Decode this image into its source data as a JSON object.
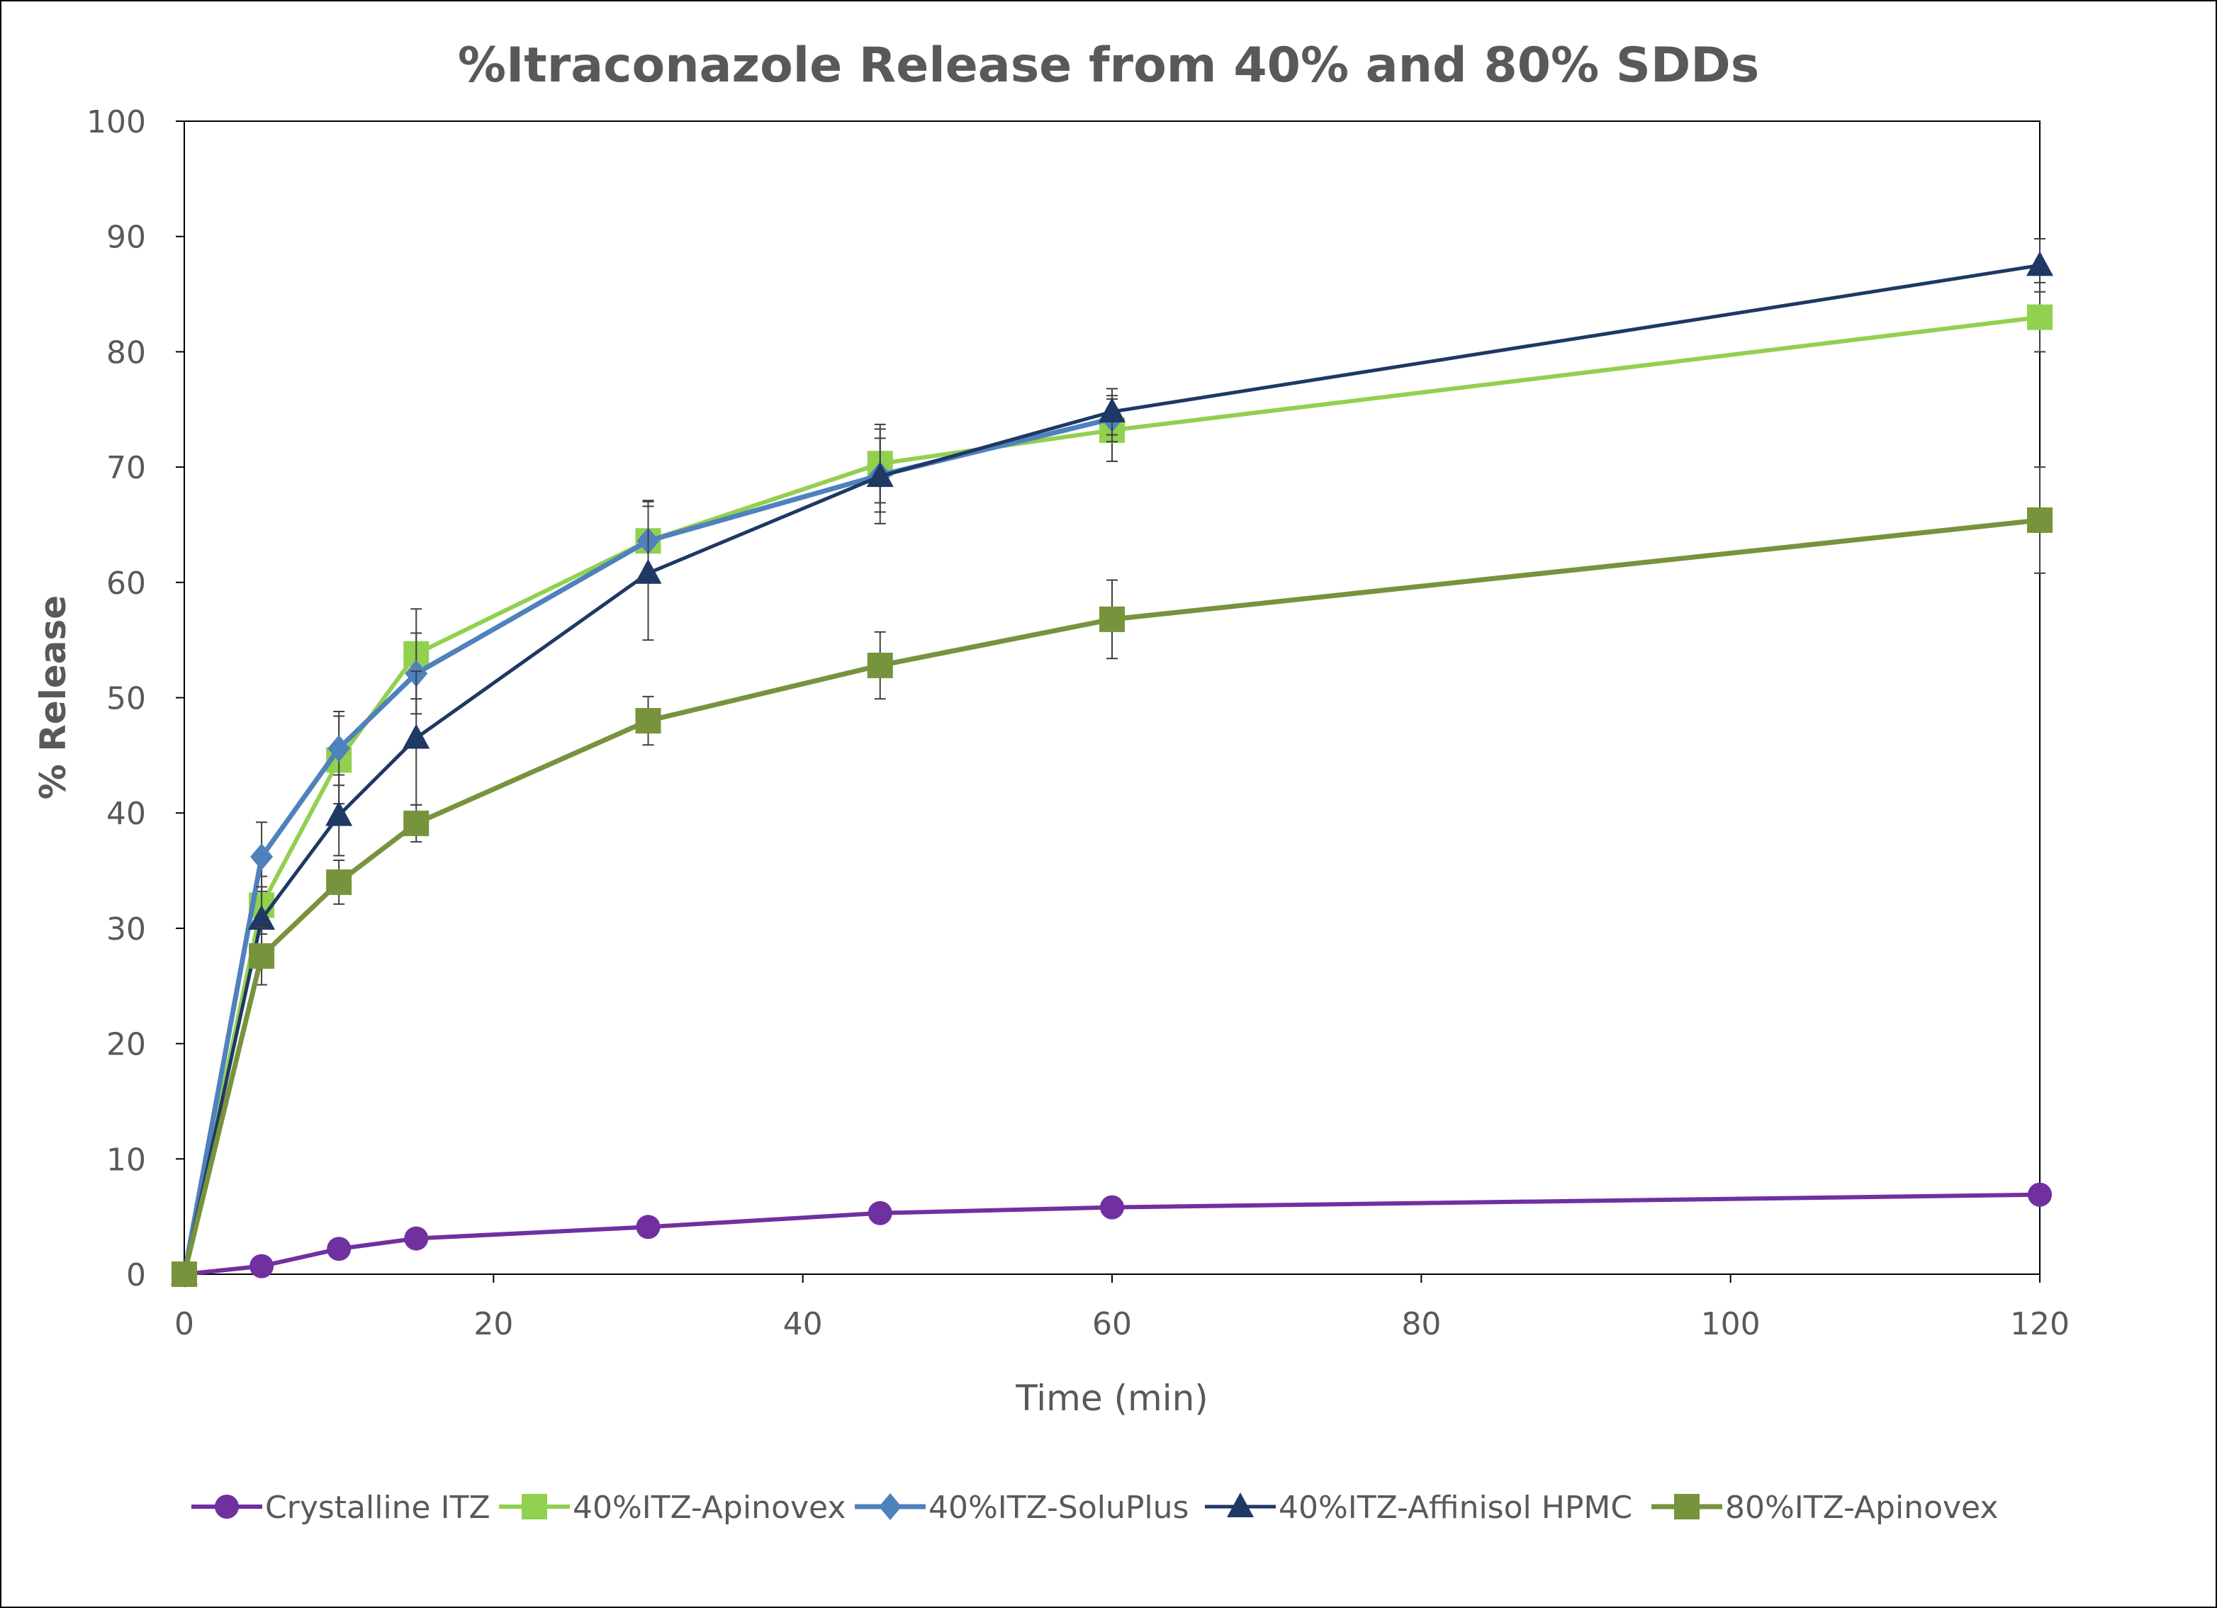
{
  "chart_data": {
    "type": "line",
    "title": "%Itraconazole Release from 40% and 80% SDDs",
    "xlabel": "Time (min)",
    "ylabel": "% Release",
    "xlim": [
      0,
      120
    ],
    "ylim": [
      0,
      100
    ],
    "x_ticks": [
      0,
      20,
      40,
      60,
      80,
      100,
      120
    ],
    "y_ticks": [
      0,
      10,
      20,
      30,
      40,
      50,
      60,
      70,
      80,
      90,
      100
    ],
    "x_tick_labels": [
      "0",
      "20",
      "40",
      "60",
      "80",
      "100",
      "120"
    ],
    "y_tick_labels": [
      "0",
      "10",
      "20",
      "30",
      "40",
      "50",
      "60",
      "70",
      "80",
      "90",
      "100"
    ],
    "grid": false,
    "legend_position": "bottom",
    "error_bars": true,
    "series": [
      {
        "name": "Crystalline ITZ",
        "color": "#7030a0",
        "marker": "circle",
        "x": [
          0,
          5,
          10,
          15,
          30,
          45,
          60,
          120
        ],
        "y": [
          0,
          0.7,
          2.2,
          3.1,
          4.1,
          5.3,
          5.8,
          6.9
        ],
        "err": [
          0,
          0,
          0,
          0,
          0,
          0,
          0,
          0
        ]
      },
      {
        "name": "40%ITZ-Apinovex",
        "color": "#92d050",
        "marker": "square",
        "x": [
          0,
          5,
          10,
          15,
          30,
          45,
          60,
          120
        ],
        "y": [
          0,
          32.0,
          44.6,
          53.8,
          63.6,
          70.3,
          73.2,
          83.0
        ],
        "err": [
          0,
          2.5,
          3.8,
          3.9,
          3.4,
          3.4,
          2.7,
          3.0
        ]
      },
      {
        "name": "40%ITZ-SoluPlus",
        "color": "#4f81bd",
        "marker": "diamond",
        "x": [
          0,
          5,
          10,
          15,
          30,
          45,
          60
        ],
        "y": [
          0,
          36.2,
          45.6,
          52.1,
          63.6,
          69.3,
          74.2
        ],
        "err": [
          0,
          3.0,
          3.2,
          3.5,
          3.5,
          3.2,
          2.0
        ]
      },
      {
        "name": "40%ITZ-Affinisol HPMC",
        "color": "#1f3864",
        "marker": "triangle",
        "x": [
          0,
          5,
          10,
          15,
          30,
          45,
          60,
          120
        ],
        "y": [
          0,
          30.8,
          39.8,
          46.5,
          60.8,
          69.2,
          74.8,
          87.5
        ],
        "err": [
          0,
          2.8,
          3.5,
          5.8,
          5.8,
          4.1,
          2.0,
          2.3
        ]
      },
      {
        "name": "80%ITZ-Apinovex",
        "color": "#77933c",
        "marker": "square",
        "x": [
          0,
          5,
          10,
          15,
          30,
          45,
          60,
          120
        ],
        "y": [
          0,
          27.6,
          34.0,
          39.1,
          48.0,
          52.8,
          56.8,
          65.4
        ],
        "err": [
          0,
          2.5,
          1.9,
          1.6,
          2.1,
          2.9,
          3.4,
          4.6
        ]
      }
    ]
  }
}
